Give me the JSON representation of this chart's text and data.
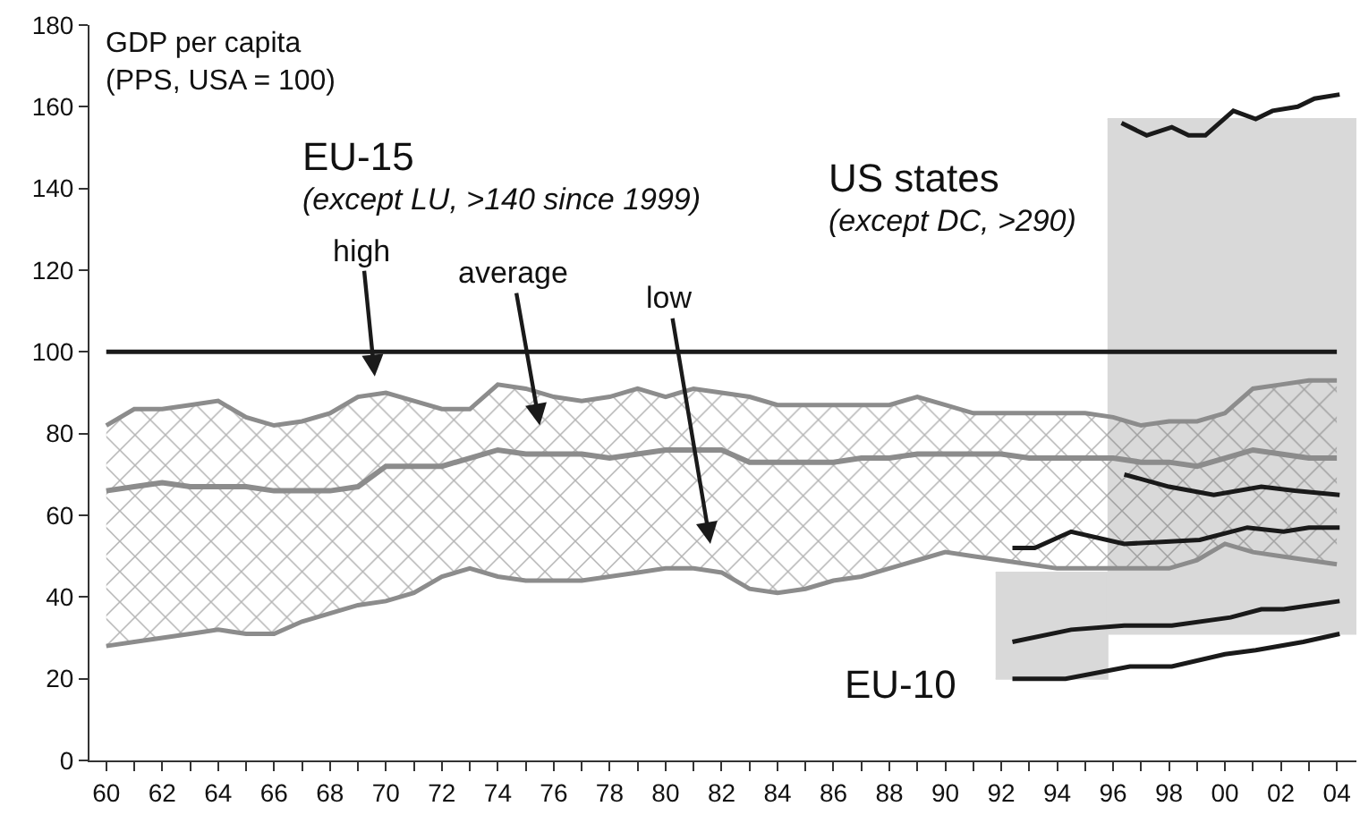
{
  "chart_data": {
    "type": "line",
    "ylabel": "GDP per capita\n(PPS, USA = 100)",
    "xlim": [
      1959.4,
      2004.7
    ],
    "xticks": [
      {
        "value": 1960,
        "label": "60"
      },
      {
        "value": 1961,
        "label": null
      },
      {
        "value": 1962,
        "label": "62"
      },
      {
        "value": 1963,
        "label": null
      },
      {
        "value": 1964,
        "label": "64"
      },
      {
        "value": 1965,
        "label": null
      },
      {
        "value": 1966,
        "label": "66"
      },
      {
        "value": 1967,
        "label": null
      },
      {
        "value": 1968,
        "label": "68"
      },
      {
        "value": 1969,
        "label": null
      },
      {
        "value": 1970,
        "label": "70"
      },
      {
        "value": 1971,
        "label": null
      },
      {
        "value": 1972,
        "label": "72"
      },
      {
        "value": 1973,
        "label": null
      },
      {
        "value": 1974,
        "label": "74"
      },
      {
        "value": 1975,
        "label": null
      },
      {
        "value": 1976,
        "label": "76"
      },
      {
        "value": 1977,
        "label": null
      },
      {
        "value": 1978,
        "label": "78"
      },
      {
        "value": 1979,
        "label": null
      },
      {
        "value": 1980,
        "label": "80"
      },
      {
        "value": 1981,
        "label": null
      },
      {
        "value": 1982,
        "label": "82"
      },
      {
        "value": 1983,
        "label": null
      },
      {
        "value": 1984,
        "label": "84"
      },
      {
        "value": 1985,
        "label": null
      },
      {
        "value": 1986,
        "label": "86"
      },
      {
        "value": 1987,
        "label": null
      },
      {
        "value": 1988,
        "label": "88"
      },
      {
        "value": 1989,
        "label": null
      },
      {
        "value": 1990,
        "label": "90"
      },
      {
        "value": 1991,
        "label": null
      },
      {
        "value": 1992,
        "label": "92"
      },
      {
        "value": 1993,
        "label": null
      },
      {
        "value": 1994,
        "label": "94"
      },
      {
        "value": 1995,
        "label": null
      },
      {
        "value": 1996,
        "label": "96"
      },
      {
        "value": 1997,
        "label": null
      },
      {
        "value": 1998,
        "label": "98"
      },
      {
        "value": 1999,
        "label": null
      },
      {
        "value": 2000,
        "label": "00"
      },
      {
        "value": 2001,
        "label": null
      },
      {
        "value": 2002,
        "label": "02"
      },
      {
        "value": 2003,
        "label": null
      },
      {
        "value": 2004,
        "label": "04"
      }
    ],
    "ylim": [
      0,
      180
    ],
    "yticks": [
      0,
      20,
      40,
      60,
      80,
      100,
      120,
      140,
      160,
      180
    ],
    "annotations": [
      "EU-15",
      "(except LU, >140 since 1999)",
      "US states",
      "(except DC, >290)",
      "EU-10",
      "high",
      "average",
      "low"
    ],
    "series": [
      {
        "type": "area",
        "color": "#d9d9d9",
        "x": [
          1995.8,
          2004.7,
          2004.7,
          1995.8
        ],
        "values": [
          157,
          157,
          31,
          31
        ]
      },
      {
        "type": "area",
        "color": "#d9d9d9",
        "x": [
          1991.8,
          1995.8,
          1995.8,
          1991.8
        ],
        "values": [
          46,
          46,
          20,
          20
        ]
      },
      {
        "color": "#8c8c8c",
        "x": [
          1960,
          1961,
          1962,
          1963,
          1964,
          1965,
          1966,
          1967,
          1968,
          1969,
          1970,
          1971,
          1972,
          1973,
          1974,
          1975,
          1976,
          1977,
          1978,
          1979,
          1980,
          1981,
          1982,
          1983,
          1984,
          1985,
          1986,
          1987,
          1988,
          1989,
          1990,
          1991,
          1992,
          1993,
          1994,
          1995,
          1996,
          1997,
          1998,
          1999,
          2000,
          2001,
          2002,
          2003,
          2004
        ],
        "values": [
          66,
          67,
          68,
          67,
          67,
          67,
          66,
          66,
          66,
          67,
          72,
          72,
          72,
          74,
          76,
          75,
          75,
          75,
          74,
          75,
          76,
          76,
          76,
          73,
          73,
          73,
          73,
          74,
          74,
          75,
          75,
          75,
          75,
          74,
          74,
          74,
          74,
          73,
          73,
          72,
          74,
          76,
          75,
          74,
          74
        ],
        "upper": [
          82,
          86,
          86,
          87,
          88,
          84,
          82,
          83,
          85,
          89,
          90,
          88,
          86,
          86,
          92,
          91,
          89,
          88,
          89,
          91,
          89,
          91,
          90,
          89,
          87,
          87,
          87,
          87,
          87,
          89,
          87,
          85,
          85,
          85,
          85,
          85,
          84,
          82,
          83,
          83,
          85,
          91,
          92,
          93,
          93
        ],
        "lower": [
          28,
          29,
          30,
          31,
          32,
          31,
          31,
          34,
          36,
          38,
          39,
          41,
          45,
          47,
          45,
          44,
          44,
          44,
          45,
          46,
          47,
          47,
          46,
          42,
          41,
          42,
          44,
          45,
          47,
          49,
          51,
          50,
          49,
          48,
          47,
          47,
          47,
          47,
          47,
          49,
          53,
          51,
          50,
          49,
          48
        ]
      },
      {
        "color": "#8c8c8c",
        "x": [
          1960,
          1961,
          1962,
          1963,
          1964,
          1965,
          1966,
          1967,
          1968,
          1969,
          1970,
          1971,
          1972,
          1973,
          1974,
          1975,
          1976,
          1977,
          1978,
          1979,
          1980,
          1981,
          1982,
          1983,
          1984,
          1985,
          1986,
          1987,
          1988,
          1989,
          1990,
          1991,
          1992,
          1993,
          1994,
          1995,
          1996,
          1997,
          1998,
          1999,
          2000,
          2001,
          2002,
          2003,
          2004
        ],
        "values": [
          82,
          86,
          86,
          87,
          88,
          84,
          82,
          83,
          85,
          89,
          90,
          88,
          86,
          86,
          92,
          91,
          89,
          88,
          89,
          91,
          89,
          91,
          90,
          89,
          87,
          87,
          87,
          87,
          87,
          89,
          87,
          85,
          85,
          85,
          85,
          85,
          84,
          82,
          83,
          83,
          85,
          91,
          92,
          93,
          93
        ]
      },
      {
        "color": "#8c8c8c",
        "x": [
          1960,
          1961,
          1962,
          1963,
          1964,
          1965,
          1966,
          1967,
          1968,
          1969,
          1970,
          1971,
          1972,
          1973,
          1974,
          1975,
          1976,
          1977,
          1978,
          1979,
          1980,
          1981,
          1982,
          1983,
          1984,
          1985,
          1986,
          1987,
          1988,
          1989,
          1990,
          1991,
          1992,
          1993,
          1994,
          1995,
          1996,
          1997,
          1998,
          1999,
          2000,
          2001,
          2002,
          2003,
          2004
        ],
        "values": [
          28,
          29,
          30,
          31,
          32,
          31,
          31,
          34,
          36,
          38,
          39,
          41,
          45,
          47,
          45,
          44,
          44,
          44,
          45,
          46,
          47,
          47,
          46,
          42,
          41,
          42,
          44,
          45,
          47,
          49,
          51,
          50,
          49,
          48,
          47,
          47,
          47,
          47,
          47,
          49,
          53,
          51,
          50,
          49,
          48
        ]
      },
      {
        "color": "#1a1a1a",
        "x": [
          1960,
          2004
        ],
        "values": [
          100,
          100
        ]
      },
      {
        "color": "#1a1a1a",
        "x": [
          1996.3,
          1997.2,
          1998.1,
          1998.7,
          1999.3,
          2000.3,
          2001.1,
          2001.7,
          2002.6,
          2003.2,
          2004.1
        ],
        "values": [
          156,
          153,
          155,
          153,
          153,
          159,
          157,
          159,
          160,
          162,
          163
        ]
      },
      {
        "color": "#1a1a1a",
        "x": [
          1996.4,
          1998,
          1999.6,
          2001.3,
          2002.5,
          2004.1
        ],
        "values": [
          70,
          67,
          65,
          67,
          66,
          65
        ]
      },
      {
        "color": "#1a1a1a",
        "x": [
          1992.4,
          1993.2,
          1994.5,
          1996.4,
          1999.1,
          2000.8,
          2002.1,
          2003,
          2004.1
        ],
        "values": [
          52,
          52,
          56,
          53,
          54,
          57,
          56,
          57,
          57
        ]
      },
      {
        "color": "#1a1a1a",
        "x": [
          1992.4,
          1994.5,
          1996.4,
          1998.1,
          2000.2,
          2001.3,
          2002.1,
          2004.1
        ],
        "values": [
          29,
          32,
          33,
          33,
          35,
          37,
          37,
          39
        ]
      },
      {
        "color": "#1a1a1a",
        "x": [
          1992.4,
          1994.3,
          1996.6,
          1998.1,
          2000,
          2001.1,
          2002.8,
          2004.1
        ],
        "values": [
          20,
          20,
          23,
          23,
          26,
          27,
          29,
          31
        ]
      }
    ]
  }
}
